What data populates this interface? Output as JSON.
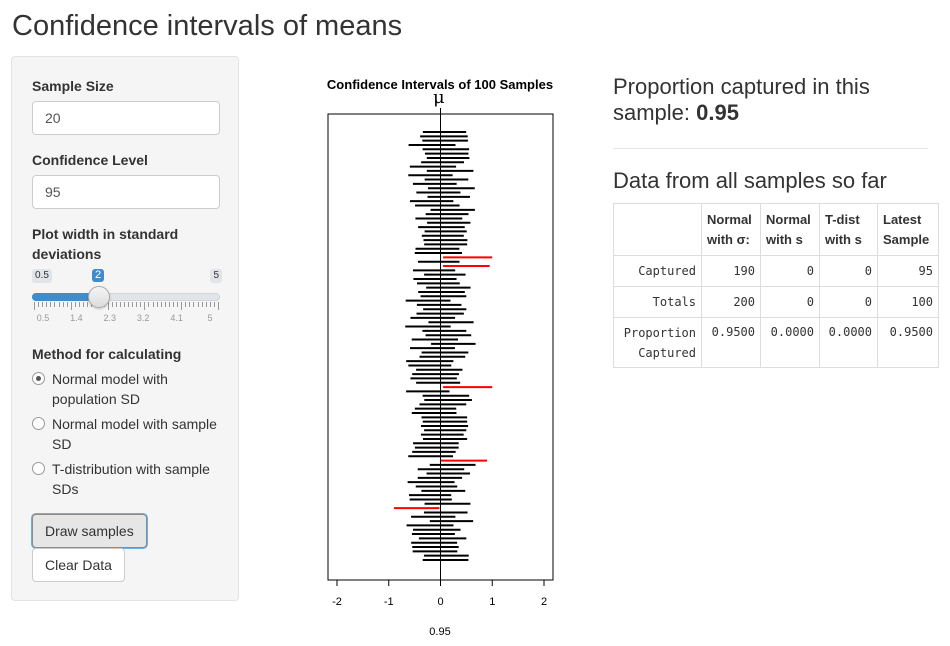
{
  "page": {
    "title": "Confidence intervals of means"
  },
  "sidebar": {
    "sample_size": {
      "label": "Sample Size",
      "value": "20"
    },
    "confidence_level": {
      "label": "Confidence Level",
      "value": "95"
    },
    "plot_width": {
      "label_line1": "Plot width in standard",
      "label_line2": "deviations",
      "min": "0.5",
      "max": "5",
      "value": "2",
      "value_fraction": 0.333,
      "grid_labels": [
        "0.5",
        "1.4",
        "2.3",
        "3.2",
        "4.1",
        "5"
      ]
    },
    "method": {
      "label": "Method for calculating",
      "options": [
        {
          "line1": "Normal model with",
          "line2": "population SD",
          "selected": true
        },
        {
          "line1": "Normal model with sample",
          "line2": "SD",
          "selected": false
        },
        {
          "line1": "T-distribution with sample",
          "line2": "SDs",
          "selected": false
        }
      ]
    },
    "draw_button": "Draw samples",
    "clear_button": "Clear Data"
  },
  "plot": {
    "title": "Confidence Intervals of 100 Samples",
    "mu_label": "μ",
    "bottom_label": "0.95"
  },
  "chart_data": {
    "type": "interval",
    "title": "Confidence Intervals of 100 Samples",
    "xlim": [
      -2,
      2
    ],
    "xticks": [
      "-2",
      "-1",
      "0",
      "1",
      "2"
    ],
    "reference_line": 0,
    "missed_color": "#ff0000",
    "captured_color": "#000000",
    "n_intervals": 100,
    "missed_intervals": [
      {
        "lower": 0.05,
        "upper": 1.0
      },
      {
        "lower": 0.05,
        "upper": 0.95
      },
      {
        "lower": 0.05,
        "upper": 1.0
      },
      {
        "lower": 0.0,
        "upper": 0.9
      },
      {
        "lower": -0.9,
        "upper": -0.02
      }
    ],
    "x_axis_label": "0.95"
  },
  "results": {
    "proportion_text": "Proportion captured in this sample:",
    "proportion_value": "0.95",
    "table_heading": "Data from all samples so far",
    "columns": [
      {
        "line1": "Normal",
        "line2": "with σ:"
      },
      {
        "line1": "Normal",
        "line2": "with s"
      },
      {
        "line1": "T-dist",
        "line2": "with s"
      },
      {
        "line1": "Latest",
        "line2": "Sample"
      }
    ],
    "rows": [
      {
        "label1": "Captured",
        "label2": "",
        "values": [
          "190",
          "0",
          "0",
          "95"
        ]
      },
      {
        "label1": "Totals",
        "label2": "",
        "values": [
          "200",
          "0",
          "0",
          "100"
        ]
      },
      {
        "label1": "Proportion",
        "label2": "Captured",
        "values": [
          "0.9500",
          "0.0000",
          "0.0000",
          "0.9500"
        ]
      }
    ]
  }
}
